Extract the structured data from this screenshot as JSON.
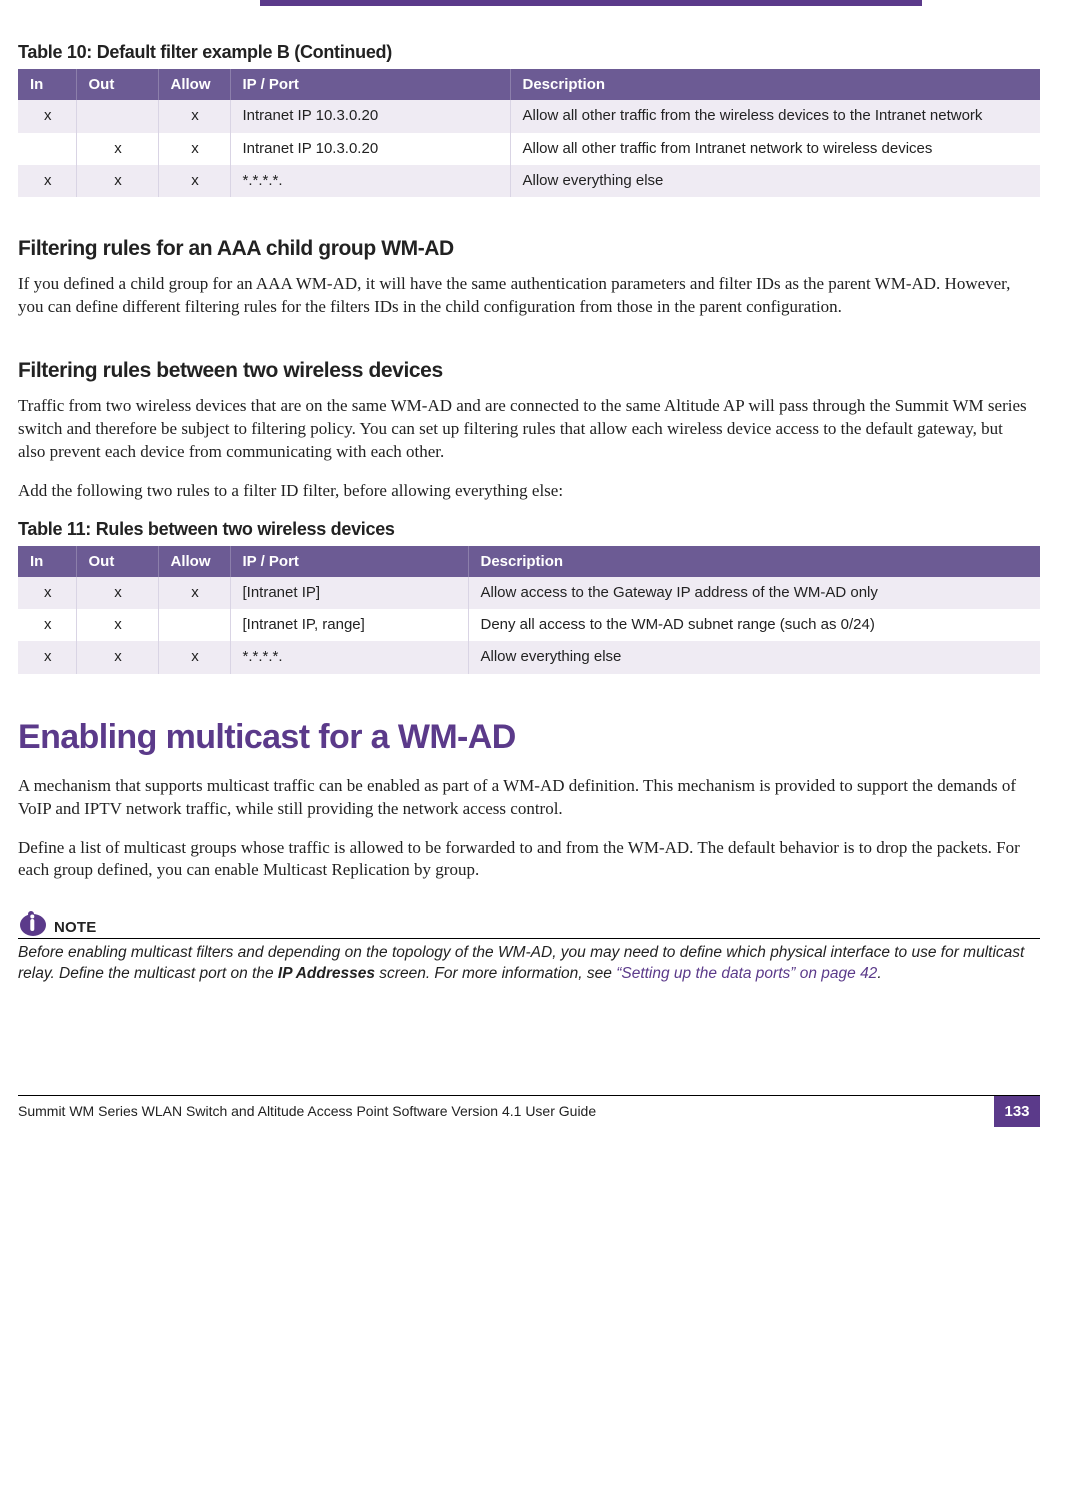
{
  "colors": {
    "accent": "#5b3a8a",
    "table_header_bg": "#6c5b94",
    "table_header_border": "#8c7fab",
    "table_row_alt_bg": "#efebf3",
    "table_cell_border": "#d9d4e4",
    "link": "#5b3a8a"
  },
  "typography": {
    "body_font": "Georgia, serif",
    "ui_font": "Arial, Helvetica, sans-serif",
    "body_size_pt": 13,
    "h2_size_pt": 25,
    "h3_size_pt": 16,
    "caption_size_pt": 14,
    "table_size_pt": 11,
    "footer_size_pt": 10
  },
  "table10": {
    "caption": "Table 10: Default filter example B (Continued)",
    "columns": [
      "In",
      "Out",
      "Allow",
      "IP / Port",
      "Description"
    ],
    "col_classes": [
      "col-in",
      "col-out",
      "col-allow",
      "col-ip",
      "col-desc"
    ],
    "rows": [
      {
        "alt": true,
        "cells": [
          "x",
          "",
          "x",
          "Intranet IP 10.3.0.20",
          "Allow all other traffic from the wireless devices to the Intranet network"
        ]
      },
      {
        "alt": false,
        "cells": [
          "",
          "x",
          "x",
          "Intranet IP 10.3.0.20",
          "Allow all other traffic from Intranet network to wireless devices"
        ]
      },
      {
        "alt": true,
        "cells": [
          "x",
          "x",
          "x",
          "*.*.*.*.",
          "Allow everything else"
        ]
      }
    ]
  },
  "section1": {
    "title": "Filtering rules for an AAA child group WM-AD",
    "para": "If you defined a child group for an AAA WM-AD, it will have the same authentication parameters and filter IDs as the parent WM-AD. However, you can define different filtering rules for the filters IDs in the child configuration from those in the parent configuration."
  },
  "section2": {
    "title": "Filtering rules between two wireless devices",
    "para1": "Traffic from two wireless devices that are on the same WM-AD and are connected to the same Altitude AP will pass through the Summit WM series switch and therefore be subject to filtering policy. You can set up filtering rules that allow each wireless device access to the default gateway, but also prevent each device from communicating with each other.",
    "para2": "Add the following two rules to a filter ID filter, before allowing everything else:"
  },
  "table11": {
    "caption": "Table 11: Rules between two wireless devices",
    "columns": [
      "In",
      "Out",
      "Allow",
      "IP / Port",
      "Description"
    ],
    "col_classes": [
      "col-in",
      "col-out",
      "col-allow",
      "col-ip2",
      "col-desc"
    ],
    "rows": [
      {
        "alt": true,
        "cells": [
          "x",
          "x",
          "x",
          "[Intranet IP]",
          "Allow access to the Gateway IP address of the WM-AD only"
        ]
      },
      {
        "alt": false,
        "cells": [
          "x",
          "x",
          "",
          "[Intranet IP, range]",
          "Deny all access to the WM-AD subnet range (such as 0/24)"
        ]
      },
      {
        "alt": true,
        "cells": [
          "x",
          "x",
          "x",
          "*.*.*.*.",
          "Allow everything else"
        ]
      }
    ]
  },
  "major": {
    "title": "Enabling multicast for a WM-AD",
    "para1": "A mechanism that supports multicast traffic can be enabled as part of a WM-AD definition. This mechanism is provided to support the demands of VoIP and IPTV network traffic, while still providing the network access control.",
    "para2": "Define a list of multicast groups whose traffic is allowed to be forwarded to and from the WM-AD. The default behavior is to drop the packets. For each group defined, you can enable Multicast Replication by group."
  },
  "note": {
    "label": "NOTE",
    "text_before": "Before enabling multicast filters and depending on the topology of the WM-AD, you may need to define which physical interface to use for multicast relay. Define the multicast port on the ",
    "bold": "IP Addresses",
    "text_mid": " screen. For more information, see ",
    "link": "“Setting up the data ports” on page 42",
    "text_after": "."
  },
  "footer": {
    "text": "Summit WM Series WLAN Switch and Altitude Access Point Software Version 4.1 User Guide",
    "page": "133"
  }
}
